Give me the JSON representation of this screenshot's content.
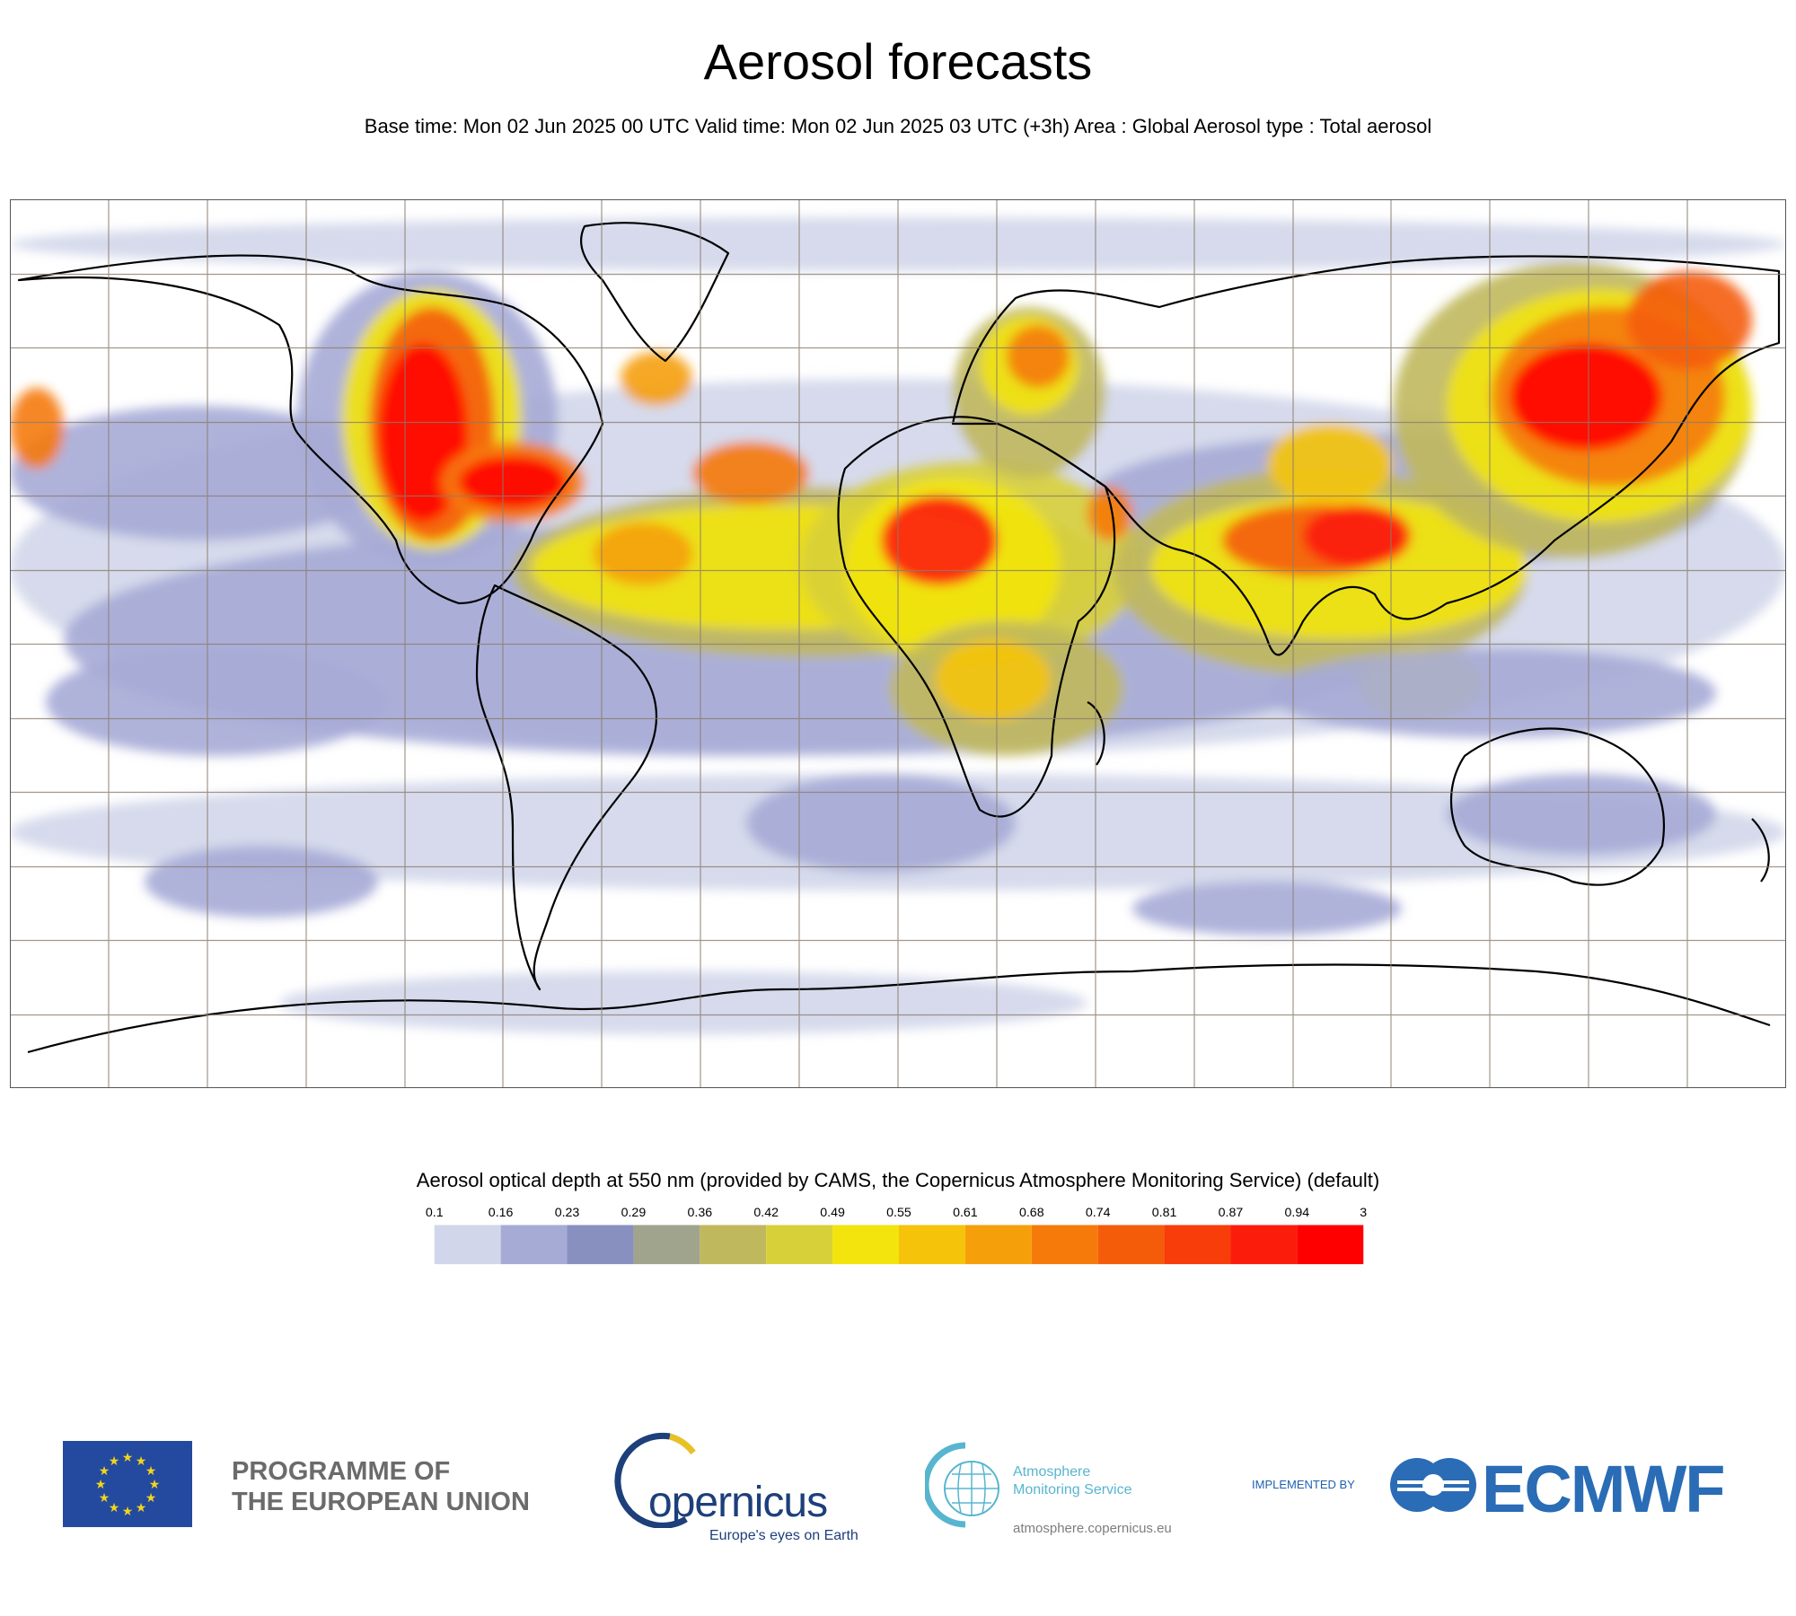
{
  "header": {
    "title": "Aerosol forecasts",
    "subtitle": "Base time: Mon 02 Jun 2025 00 UTC Valid time: Mon 02 Jun 2025 03 UTC (+3h) Area : Global Aerosol type : Total aerosol"
  },
  "map": {
    "projection": "equirectangular",
    "grid": true,
    "palette": [
      "#d2d6ea",
      "#a6abd6",
      "#8890c0",
      "#a0a48c",
      "#c0b85c",
      "#d8d038",
      "#f2e40c",
      "#f5c40a",
      "#f5a00a",
      "#f57a0a",
      "#f55c0a",
      "#f83c0a",
      "#fc1c0c",
      "#ff0000"
    ]
  },
  "colorbar": {
    "title": "Aerosol optical depth at 550 nm (provided by CAMS, the Copernicus Atmosphere Monitoring Service) (default)",
    "ticks": [
      "0.1",
      "0.16",
      "0.23",
      "0.29",
      "0.36",
      "0.42",
      "0.49",
      "0.55",
      "0.61",
      "0.68",
      "0.74",
      "0.81",
      "0.87",
      "0.94",
      "3"
    ]
  },
  "footer": {
    "eu_line1": "PROGRAMME OF",
    "eu_line2": "THE EUROPEAN UNION",
    "copernicus_word": "opernicus",
    "copernicus_tagline": "Europe's eyes on Earth",
    "cams_line1": "Atmosphere",
    "cams_line2": "Monitoring Service",
    "cams_url": "atmosphere.copernicus.eu",
    "implemented_by": "IMPLEMENTED BY",
    "ecmwf_word": "ECMWF"
  }
}
